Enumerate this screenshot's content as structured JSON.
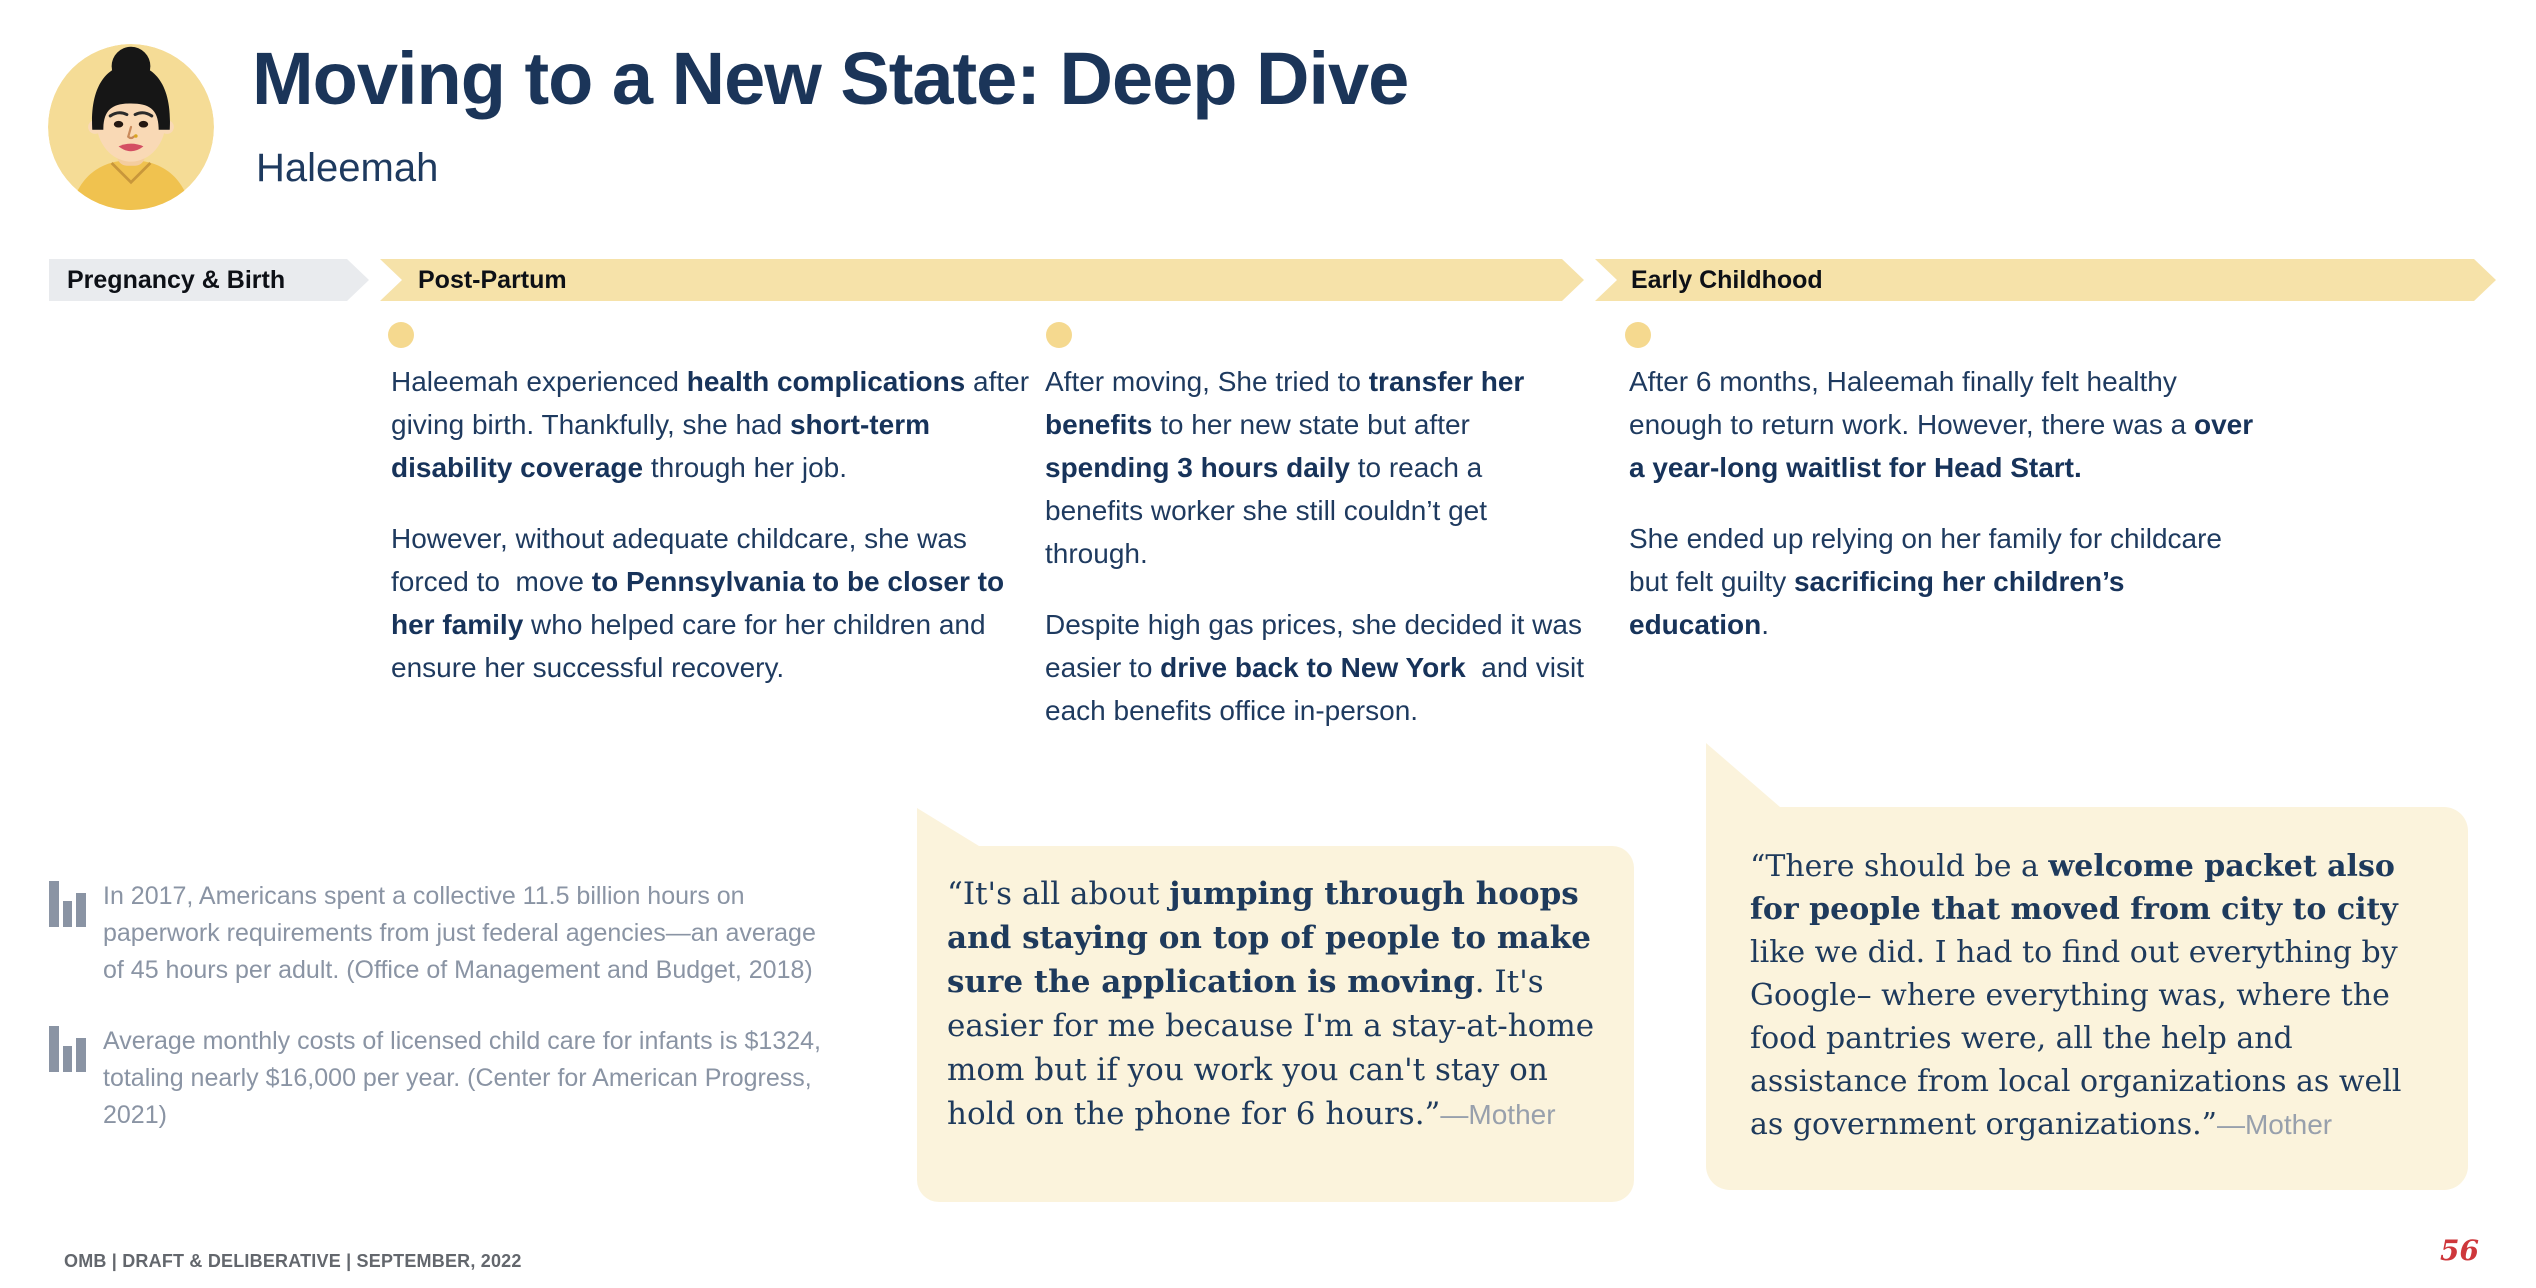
{
  "header": {
    "title": "Moving to a New State: Deep Dive",
    "subtitle": "Haleemah"
  },
  "timeline": {
    "phases": [
      {
        "label": "Pregnancy & Birth"
      },
      {
        "label": "Post-Partum"
      },
      {
        "label": "Early Childhood"
      }
    ]
  },
  "columns": [
    {
      "paragraphs": [
        [
          {
            "t": "Haleemah experienced "
          },
          {
            "t": "health complications",
            "b": true
          },
          {
            "t": " after giving birth. Thankfully, she had "
          },
          {
            "t": "short-term disability coverage",
            "b": true
          },
          {
            "t": " through her job."
          }
        ],
        [
          {
            "t": "However, without adequate childcare, she was forced to  move "
          },
          {
            "t": "to Pennsylvania to be closer to her family",
            "b": true
          },
          {
            "t": " who helped care for her children and ensure her successful recovery."
          }
        ]
      ]
    },
    {
      "paragraphs": [
        [
          {
            "t": "After moving, She tried to "
          },
          {
            "t": "transfer her benefits",
            "b": true
          },
          {
            "t": " to her new state but after "
          },
          {
            "t": "spending 3 hours daily",
            "b": true
          },
          {
            "t": " to reach a benefits worker she still couldn’t get through."
          }
        ],
        [
          {
            "t": "Despite high gas prices, she decided it was easier to "
          },
          {
            "t": "drive back to New York",
            "b": true
          },
          {
            "t": "  and visit each benefits office in-person."
          }
        ]
      ]
    },
    {
      "paragraphs": [
        [
          {
            "t": "After 6 months, Haleemah finally felt healthy enough to return work. However, there was a "
          },
          {
            "t": "over a year-long waitlist for Head Start.",
            "b": true
          }
        ],
        [
          {
            "t": "She ended up relying on her family for childcare but felt guilty "
          },
          {
            "t": "sacrificing her children’s education",
            "b": true
          },
          {
            "t": "."
          }
        ]
      ]
    }
  ],
  "stats": [
    {
      "icon": "bar-chart-icon",
      "text": "In 2017, Americans spent a collective 11.5 billion hours on paperwork requirements from just federal agencies—an average of 45 hours per adult. (Office of Management and Budget, 2018)"
    },
    {
      "icon": "bar-chart-icon",
      "text": "Average monthly costs of licensed child care for infants is $1324, totaling nearly $16,000 per year. (Center for American Progress, 2021)"
    }
  ],
  "quotes": [
    {
      "segments": [
        {
          "t": "“It's all about "
        },
        {
          "t": "jumping through hoops and staying on top of people to make sure the application is moving",
          "b": true
        },
        {
          "t": ". It's easier for me because I'm a stay-at-home mom but if you work you can't stay on hold on the phone for 6 hours.”"
        }
      ],
      "attribution": "—Mother"
    },
    {
      "segments": [
        {
          "t": "“There should be a "
        },
        {
          "t": "welcome packet also for people that moved from city to city",
          "b": true
        },
        {
          "t": " like we did. I had to find out everything by Google– where everything was, where the food pantries were, all the help and assistance from local organizations as well as government organizations.”"
        }
      ],
      "attribution": "—Mother"
    }
  ],
  "footer": {
    "left": "OMB | DRAFT & DELIBERATIVE | SEPTEMBER, 2022",
    "page_number": "56"
  },
  "colors": {
    "navy_text": "#1E3A5F",
    "title_navy": "#1B3559",
    "gold_band": "#F6E2A9",
    "gold_dot": "#F5D98F",
    "gray_band": "#E9EBEE",
    "quote_cream": "#FBF3DC",
    "stat_gray": "#8A94A4",
    "footer_gray": "#63676D",
    "page_number_red": "#CE373B"
  },
  "icons": {
    "stat": "bar-chart-icon",
    "avatar": "woman-avatar-illustration"
  }
}
